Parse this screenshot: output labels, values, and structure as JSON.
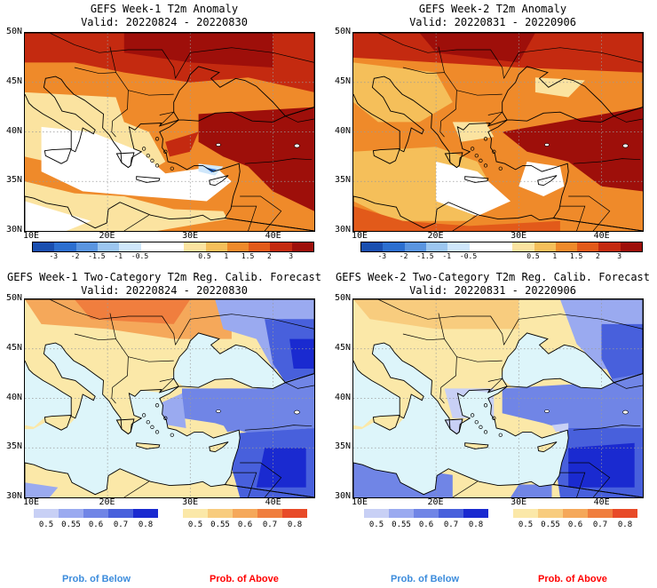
{
  "panels": [
    {
      "id": "p1",
      "line1": "GEFS Week-1 T2m Anomaly",
      "line2": "Valid: 20220824 - 20220830",
      "kind": "anomaly",
      "variant": 1
    },
    {
      "id": "p2",
      "line1": "GEFS Week-2 T2m Anomaly",
      "line2": "Valid: 20220831 - 20220906",
      "kind": "anomaly",
      "variant": 2
    },
    {
      "id": "p3",
      "line1": "GEFS Week-1 Two-Category T2m Reg. Calib. Forecast",
      "line2": "Valid: 20220824 - 20220830",
      "kind": "prob",
      "variant": 1
    },
    {
      "id": "p4",
      "line1": "GEFS Week-2 Two-Category T2m Reg. Calib. Forecast",
      "line2": "Valid: 20220831 - 20220906",
      "kind": "prob",
      "variant": 2
    }
  ],
  "lat_labels": [
    "50N",
    "45N",
    "40N",
    "35N",
    "30N"
  ],
  "lon_labels": [
    "10E",
    "20E",
    "30E",
    "40E"
  ],
  "anomaly_colorbar": {
    "colors": [
      "#1a4fb0",
      "#2c6fd0",
      "#5a95e0",
      "#9cc6f0",
      "#cfe7fb",
      "#ffffff",
      "#ffffff",
      "#fbe3a0",
      "#f5bf5a",
      "#ef8a2a",
      "#e25a1a",
      "#c42a10",
      "#9e0f0a"
    ],
    "ticks": [
      "-3",
      "-2",
      "-1.5",
      "-1",
      "-0.5",
      "0.5",
      "1",
      "1.5",
      "2",
      "3"
    ]
  },
  "prob_below_bar": {
    "colors": [
      "#c8d0f5",
      "#9aaaf0",
      "#7085e6",
      "#4860dc",
      "#1a2ad0"
    ],
    "ticks": [
      "0.5",
      "0.55",
      "0.6",
      "0.7",
      "0.8"
    ]
  },
  "prob_above_bar": {
    "colors": [
      "#fbe8a8",
      "#f8cc7e",
      "#f5a85a",
      "#f07e3e",
      "#e84a28"
    ],
    "ticks": [
      "0.5",
      "0.55",
      "0.6",
      "0.7",
      "0.8"
    ]
  },
  "legend": {
    "below": "Prob. of Below",
    "above": "Prob. of Above"
  },
  "colors": {
    "sea": "#ddf5fa",
    "coast": "#000000",
    "grid": "#999999",
    "below_label": "#3c8cdc",
    "above_label": "#ff0000"
  }
}
